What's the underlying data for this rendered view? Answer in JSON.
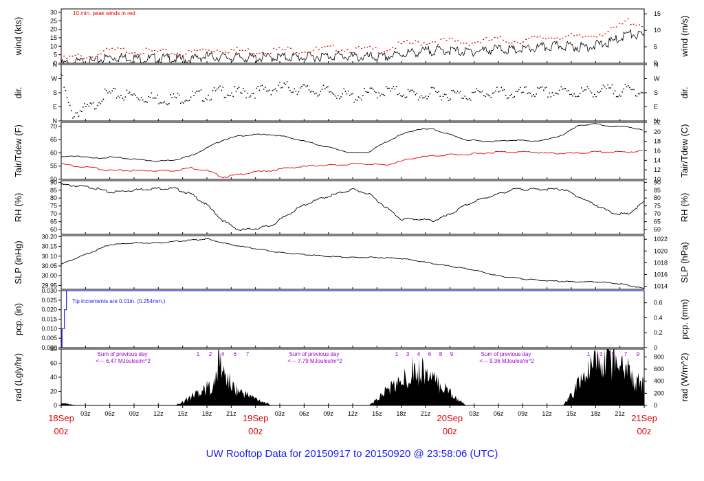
{
  "footer": {
    "title": "UW Rooftop Data for 20150917  to  20150920 @ 23:58:06  (UTC)"
  },
  "colors": {
    "series_black": "#000000",
    "dewpoint": "#e00000",
    "peak": "#e00000",
    "precip": "#2020e0",
    "day_label": "#e00000",
    "annotation": "#9900cc",
    "footer": "#1a1aff"
  },
  "chart_data": [
    {
      "type": "line",
      "title": "",
      "ylabel_left": "wind (kts)",
      "ylabel_right": "wind (m/s)",
      "ylim": [
        0,
        32
      ],
      "yticks_left": [
        0,
        5,
        10,
        15,
        20,
        25,
        30
      ],
      "ylim_right": [
        0,
        16.5
      ],
      "yticks_right": [
        0,
        5,
        10,
        15
      ],
      "annotation": "10 min. peak winds in red",
      "x_hours": [
        0,
        1,
        2,
        3,
        4,
        5,
        6,
        8,
        10,
        12,
        14,
        16,
        17,
        18,
        20,
        22,
        24,
        26,
        28,
        30,
        32,
        34,
        36,
        38,
        40,
        42,
        44,
        46,
        48,
        50,
        52,
        54,
        56,
        58,
        60,
        62,
        64,
        66,
        68,
        70,
        72
      ],
      "series": [
        {
          "name": "wind",
          "values": [
            1,
            1.5,
            2,
            2.5,
            2,
            4,
            5,
            5,
            4,
            4.5,
            4,
            3.5,
            5,
            5.5,
            5,
            5,
            4.5,
            5,
            5,
            5,
            5.5,
            6,
            5,
            5,
            5,
            7,
            8,
            9,
            9,
            8,
            9,
            10,
            9,
            10,
            11,
            12,
            11,
            12,
            14,
            19,
            17
          ]
        },
        {
          "name": "peak wind",
          "values": [
            2,
            3,
            4,
            4,
            4,
            6,
            7.5,
            7.5,
            7,
            6.5,
            6,
            6,
            7.5,
            8,
            8,
            7.5,
            7,
            7.5,
            8,
            7.5,
            8,
            9,
            8,
            8,
            8,
            11,
            12,
            13,
            13,
            12,
            13,
            14,
            13,
            14,
            15,
            16,
            15,
            17,
            19,
            25,
            22
          ]
        }
      ]
    },
    {
      "type": "scatter",
      "title": "",
      "ylabel_left": "dir.",
      "ylabel_right": "dir.",
      "ylim": [
        0,
        360
      ],
      "yticks": [
        "N",
        "E",
        "S",
        "W",
        "N"
      ],
      "x_hours": [
        0,
        0.5,
        1,
        1.5,
        2,
        3,
        4,
        5,
        6,
        8,
        10,
        12,
        14,
        16,
        18,
        20,
        22,
        24,
        26,
        28,
        30,
        32,
        34,
        36,
        38,
        40,
        42,
        44,
        46,
        48,
        50,
        52,
        54,
        56,
        58,
        60,
        62,
        64,
        66,
        68,
        70,
        72
      ],
      "values": [
        315,
        200,
        100,
        60,
        80,
        95,
        110,
        180,
        190,
        185,
        175,
        160,
        165,
        175,
        185,
        210,
        195,
        205,
        225,
        235,
        220,
        210,
        200,
        170,
        195,
        210,
        205,
        180,
        195,
        190,
        185,
        195,
        200,
        190,
        205,
        200,
        205,
        200,
        210,
        215,
        212,
        210
      ]
    },
    {
      "type": "line",
      "title": "",
      "ylabel_left": "Tair/Tdew (F)",
      "ylabel_right": "Tair/Tdew (C)",
      "ylim": [
        50,
        71.5
      ],
      "yticks_left": [
        50,
        55,
        60,
        65,
        70
      ],
      "ylim_right": [
        10,
        22
      ],
      "yticks_right": [
        10,
        12,
        14,
        16,
        18,
        20,
        22
      ],
      "x_hours": [
        0,
        2,
        4,
        6,
        8,
        10,
        12,
        14,
        16,
        18,
        20,
        22,
        24,
        26,
        28,
        30,
        32,
        34,
        36,
        38,
        40,
        42,
        44,
        46,
        48,
        50,
        52,
        54,
        56,
        58,
        60,
        62,
        64,
        66,
        68,
        70,
        72
      ],
      "series": [
        {
          "name": "Tair",
          "values": [
            58.5,
            59,
            58,
            58.5,
            58,
            57.5,
            57,
            57.5,
            59,
            62,
            65,
            66.5,
            67,
            67,
            66,
            64.5,
            63,
            61.5,
            60,
            60.5,
            64,
            67,
            69,
            69,
            67,
            65,
            64.5,
            64.5,
            65,
            64.5,
            65,
            67,
            70.5,
            71,
            70,
            70,
            68.5
          ]
        },
        {
          "name": "Tdew",
          "values": [
            56,
            55,
            54.5,
            53.5,
            53.5,
            53.5,
            53.5,
            53.5,
            54.5,
            53.5,
            51,
            52,
            53,
            53.5,
            54.5,
            55,
            55.5,
            55.5,
            56,
            56,
            55.5,
            57,
            58.5,
            59,
            59.5,
            59.5,
            60,
            60.5,
            60.5,
            60.5,
            60,
            60,
            60,
            60.5,
            60.5,
            60.5,
            61
          ]
        }
      ]
    },
    {
      "type": "line",
      "title": "",
      "ylabel_left": "RH (%)",
      "ylabel_right": "RH (%)",
      "ylim": [
        57,
        91
      ],
      "yticks": [
        60,
        65,
        70,
        75,
        80,
        85,
        90
      ],
      "x_hours": [
        0,
        2,
        4,
        6,
        8,
        10,
        12,
        14,
        16,
        18,
        20,
        22,
        24,
        26,
        28,
        30,
        32,
        34,
        36,
        38,
        40,
        42,
        44,
        46,
        48,
        50,
        52,
        54,
        56,
        58,
        60,
        62,
        64,
        66,
        68,
        70,
        72
      ],
      "values": [
        89,
        88,
        87,
        84,
        85,
        86,
        86.5,
        86.5,
        83,
        76,
        66,
        60,
        61,
        63,
        70,
        76,
        80,
        83,
        86,
        83,
        75,
        67,
        67,
        66,
        70,
        76,
        80,
        83,
        86,
        86,
        86,
        86,
        81,
        76,
        71,
        70,
        78
      ]
    },
    {
      "type": "line",
      "title": "",
      "ylabel_left": "SLP (inHg)",
      "ylabel_right": "SLP (hPa)",
      "ylim": [
        29.93,
        30.205
      ],
      "yticks_left": [
        29.95,
        30.0,
        30.05,
        30.1,
        30.15,
        30.2
      ],
      "ylim_right": [
        1013.5,
        1022.6
      ],
      "yticks_right": [
        1014,
        1016,
        1018,
        1020,
        1022
      ],
      "x_hours": [
        0,
        3,
        6,
        9,
        12,
        15,
        18,
        21,
        24,
        27,
        30,
        33,
        36,
        39,
        42,
        45,
        48,
        51,
        54,
        57,
        60,
        63,
        66,
        69,
        72
      ],
      "values": [
        30.06,
        30.11,
        30.16,
        30.17,
        30.17,
        30.18,
        30.19,
        30.16,
        30.14,
        30.12,
        30.11,
        30.1,
        30.095,
        30.095,
        30.09,
        30.07,
        30.05,
        30.03,
        30.0,
        29.985,
        29.975,
        29.97,
        29.97,
        29.96,
        29.935
      ]
    },
    {
      "type": "line",
      "title": "",
      "ylabel_left": "pcp. (in)",
      "ylabel_right": "pcp. (mm)",
      "ylim": [
        0,
        0.03
      ],
      "yticks_left": [
        0.0,
        0.005,
        0.01,
        0.015,
        0.02,
        0.025,
        0.03
      ],
      "yticks_right": [
        0,
        0.2,
        0.4,
        0.6
      ],
      "annotation": "Tip increments are 0.01in. (0.254mm.)",
      "x_hours": [
        0,
        0.1,
        0.1,
        0.4,
        0.4,
        0.65,
        0.65,
        72
      ],
      "values": [
        0,
        0,
        0.01,
        0.01,
        0.02,
        0.02,
        0.03,
        0.03
      ]
    },
    {
      "type": "area",
      "title": "",
      "ylabel_left": "rad (Lgly/hr)",
      "ylabel_right": "rad (W/m^2)",
      "ylim": [
        0,
        80
      ],
      "yticks_left": [
        0,
        20,
        40,
        60,
        80
      ],
      "ylim_right": [
        0,
        930
      ],
      "yticks_right": [
        0,
        200,
        400,
        600,
        800
      ],
      "x_hours": [
        0,
        0.5,
        1,
        1.5,
        2,
        14,
        15,
        16,
        17,
        18,
        19,
        19.5,
        20,
        20.5,
        21,
        22,
        23,
        24,
        25,
        26,
        38,
        39,
        40,
        41,
        42,
        43,
        43.5,
        44,
        44.5,
        45,
        46,
        47,
        48,
        49,
        50,
        62,
        63,
        64,
        65,
        66,
        67,
        67.5,
        68,
        68.5,
        69,
        69.5,
        70,
        70.5,
        71,
        71.5,
        72
      ],
      "values": [
        3,
        3,
        2,
        1,
        0,
        0,
        5,
        12,
        20,
        25,
        30,
        70,
        45,
        40,
        28,
        20,
        15,
        10,
        5,
        0,
        0,
        8,
        20,
        28,
        32,
        45,
        60,
        40,
        55,
        45,
        35,
        28,
        20,
        8,
        0,
        0,
        15,
        35,
        45,
        60,
        58,
        75,
        62,
        70,
        55,
        68,
        50,
        40,
        30,
        35,
        28
      ],
      "peak_markers": [
        {
          "day": "19Sep",
          "labels": [
            "1",
            "2",
            "4",
            "6",
            "7"
          ]
        },
        {
          "day": "20Sep",
          "labels": [
            "1",
            "3",
            "4",
            "6",
            "8",
            "9"
          ]
        },
        {
          "day": "21Sep",
          "labels": [
            "1",
            "3",
            "5",
            "7",
            "9"
          ]
        }
      ],
      "day_sums": [
        {
          "line1": "Sum of previous day",
          "line2": "<--- 6.47 MJoules/m^2"
        },
        {
          "line1": "Sum of previous day",
          "line2": "<--- 7.79 MJoules/m^2"
        },
        {
          "line1": "Sum of previous day",
          "line2": "<--- 9.36 MJoules/m^2"
        }
      ]
    }
  ],
  "x_axis": {
    "hour_ticks": [
      "03z",
      "06z",
      "09z",
      "12z",
      "15z",
      "18z",
      "21z"
    ],
    "day_labels": [
      {
        "date": "18Sep",
        "hour": "00z"
      },
      {
        "date": "19Sep",
        "hour": "00z"
      },
      {
        "date": "20Sep",
        "hour": "00z"
      },
      {
        "date": "21Sep",
        "hour": "00z"
      }
    ]
  }
}
